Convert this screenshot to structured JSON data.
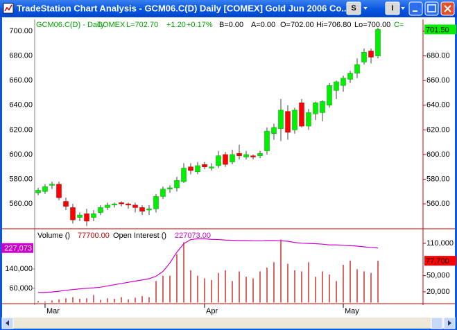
{
  "window": {
    "title": "TradeStation Chart Analysis - GCM06.C(D)  Daily  [COMEX] Gold Jun 2006 Co...",
    "buttons": [
      "S",
      "I"
    ]
  },
  "chart_data": [
    {
      "type": "candlestick",
      "header": [
        "GCM06.C(D) - Daily",
        "COMEX",
        "L=702.70",
        "+1.20",
        "+0.17%",
        "B=0.00",
        "A=0.00",
        "O=702.00",
        "Hi=706.80",
        "Lo=700.00",
        "C="
      ],
      "categories": [
        null,
        "Mar",
        null,
        null,
        null,
        null,
        null,
        null,
        null,
        null,
        null,
        null,
        null,
        null,
        null,
        null,
        null,
        null,
        null,
        null,
        null,
        null,
        null,
        null,
        "Apr",
        null,
        null,
        null,
        null,
        null,
        null,
        null,
        null,
        null,
        null,
        null,
        null,
        null,
        null,
        null,
        null,
        null,
        null,
        null,
        "May",
        null,
        null,
        null,
        null,
        null
      ],
      "open": [
        569,
        570,
        575,
        576,
        562,
        557,
        549,
        552,
        549,
        553,
        557,
        559,
        561,
        560,
        559,
        557,
        555,
        556,
        566,
        572,
        573,
        578,
        590,
        586,
        592,
        589,
        591,
        600,
        594,
        601,
        598,
        599,
        599,
        603,
        617,
        621,
        635,
        620,
        642,
        623,
        633,
        634,
        640,
        652,
        656,
        661,
        666,
        675,
        684,
        680
      ],
      "high": [
        573,
        576,
        578,
        578,
        565,
        560,
        553,
        556,
        555,
        559,
        561,
        561,
        562,
        561,
        561,
        559,
        559,
        568,
        574,
        575,
        582,
        593,
        593,
        594,
        594,
        593,
        603,
        602,
        604,
        608,
        603,
        600,
        603,
        622,
        625,
        645,
        640,
        638,
        645,
        637,
        643,
        644,
        658,
        660,
        664,
        668,
        678,
        686,
        686,
        703
      ],
      "low": [
        567,
        568,
        572,
        563,
        555,
        544,
        546,
        542,
        546,
        551,
        555,
        557,
        558,
        556,
        553,
        551,
        551,
        553,
        564,
        569,
        570,
        577,
        584,
        584,
        588,
        587,
        589,
        590,
        592,
        596,
        596,
        596,
        597,
        600,
        612,
        611,
        612,
        617,
        622,
        620,
        628,
        627,
        638,
        645,
        651,
        658,
        662,
        673,
        674,
        678
      ],
      "close": [
        571,
        574,
        576,
        565,
        558,
        547,
        551,
        546,
        552,
        557,
        559,
        560,
        560,
        559,
        557,
        554,
        556,
        566,
        572,
        573,
        579,
        589,
        587,
        591,
        590,
        590,
        599,
        592,
        600,
        599,
        600,
        598,
        601,
        619,
        622,
        636,
        618,
        636,
        623,
        634,
        642,
        643,
        656,
        659,
        662,
        666,
        673,
        683,
        679,
        701.5
      ],
      "up_color": "#00ee00",
      "down_color": "#ff0000",
      "ylim": [
        539.8,
        709.6
      ],
      "yticks": [
        {
          "value": 560,
          "label": "560.00"
        },
        {
          "value": 580,
          "label": "580.00"
        },
        {
          "value": 600,
          "label": "600.00"
        },
        {
          "value": 620,
          "label": "620.00"
        },
        {
          "value": 640,
          "label": "640.00"
        },
        {
          "value": 660,
          "label": "660.00"
        },
        {
          "value": 680,
          "label": "680.00"
        },
        {
          "value": 700,
          "label": "700.00"
        }
      ],
      "last_label": "701.50"
    },
    {
      "type": "combo",
      "series": [
        {
          "name": "Volume ()",
          "type": "bar",
          "axis": "y2",
          "color": "#c00000",
          "legend_value": "77700.00",
          "axis_value_label": "77,700",
          "values": [
            3000,
            2000,
            4000,
            6000,
            8000,
            10000,
            7000,
            8000,
            14000,
            5000,
            8000,
            7000,
            10000,
            6000,
            9000,
            12000,
            10000,
            40000,
            50000,
            50000,
            90000,
            112000,
            60000,
            50000,
            45000,
            42000,
            55000,
            60000,
            40000,
            58000,
            48000,
            45000,
            58000,
            65000,
            75000,
            117000,
            72000,
            60000,
            58000,
            75000,
            48000,
            58000,
            52000,
            40000,
            70000,
            78000,
            62000,
            58000,
            55000,
            77700
          ]
        },
        {
          "name": "Open Interest ()",
          "type": "line",
          "color": "#cc00cc",
          "legend_value": "227073.00",
          "axis_value_label": "227,073",
          "values": [
            43000,
            43000,
            45000,
            48000,
            52000,
            55000,
            58000,
            60000,
            62000,
            65000,
            70000,
            75000,
            80000,
            85000,
            90000,
            95000,
            100000,
            110000,
            130000,
            165000,
            210000,
            245000,
            262000,
            265000,
            265000,
            263000,
            262000,
            260000,
            259000,
            258000,
            258000,
            257000,
            257000,
            258000,
            258000,
            257000,
            255000,
            250000,
            247000,
            246000,
            245000,
            243000,
            240000,
            240000,
            238000,
            237000,
            235000,
            232000,
            229000,
            227073
          ]
        }
      ],
      "ylim": [
        -3400,
        301000
      ],
      "yticks": [
        {
          "value": 60000,
          "label": "60,000"
        },
        {
          "value": 140000,
          "label": "140,000"
        }
      ],
      "y2lim": [
        -2000,
        134500
      ],
      "y2ticks": [
        {
          "value": 20000,
          "label": "20,000"
        },
        {
          "value": 50000,
          "label": "50,000"
        },
        {
          "value": 110000,
          "label": "110,000"
        }
      ]
    }
  ]
}
